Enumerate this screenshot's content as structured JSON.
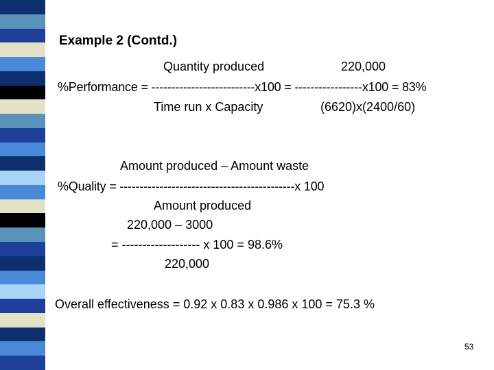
{
  "stripe_colors": [
    "#0d2f6e",
    "#5b93b8",
    "#1e3f9a",
    "#e4e2c6",
    "#4a88d8",
    "#0d2f6e",
    "#000000",
    "#e4e2c6",
    "#5b93b8",
    "#1e3f9a",
    "#4a88d8",
    "#0d2f6e",
    "#a9d4f5",
    "#4a88d8",
    "#e4e2c6",
    "#000000",
    "#5b93b8",
    "#1e3f9a",
    "#0d2f6e",
    "#4a88d8",
    "#a9d4f5",
    "#1e3f9a",
    "#e4e2c6",
    "#0d2f6e",
    "#4a88d8",
    "#1e3f9a"
  ],
  "slide": {
    "title": "Example 2 (Contd.)",
    "performance": {
      "numerator_label": "Quantity produced",
      "numerator_value": "220,000",
      "equation": "%Performance = --------------------------x100 = -----------------x100 = 83%",
      "denominator_label": "Time run x Capacity",
      "denominator_value": "(6620)x(2400/60)"
    },
    "quality": {
      "numerator_label": "Amount produced – Amount waste",
      "equation": "%Quality = --------------------------------------------x 100",
      "denominator_label": "Amount produced",
      "numerator_value": "220,000 – 3000",
      "equation_value": "= ------------------- x 100 = 98.6%",
      "denominator_value": "220,000"
    },
    "overall": "Overall effectiveness = 0.92 x 0.83 x 0.986 x 100 = 75.3 %",
    "page_number": "53"
  }
}
